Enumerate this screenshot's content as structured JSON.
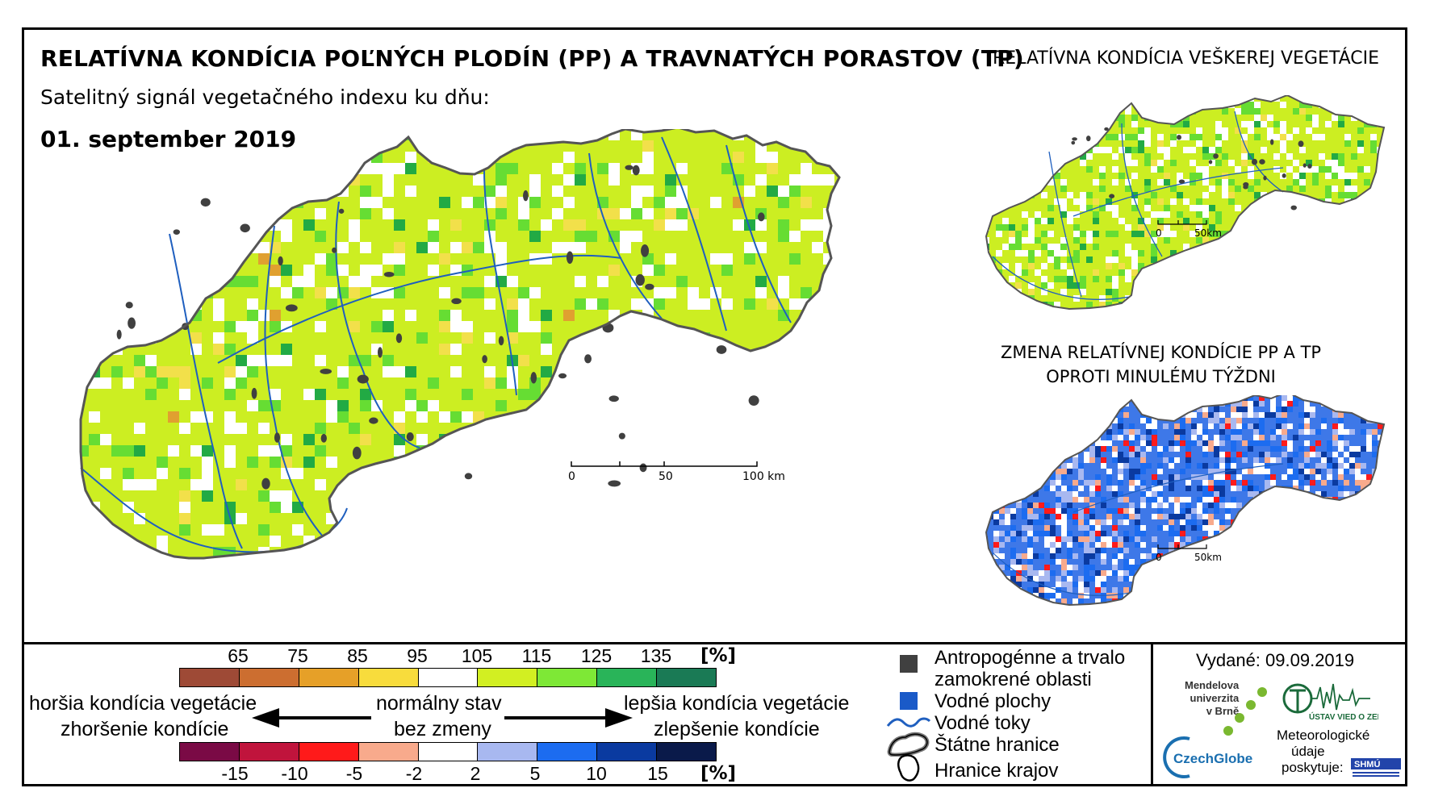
{
  "header": {
    "title": "RELATÍVNA KONDÍCIA POĽNÝCH PLODÍN (PP) A TRAVNATÝCH PORASTOV (TP)",
    "subtitle": "Satelitný signál vegetačného indexu ku dňu:",
    "date": "01. september 2019",
    "title_all_vegetation": "RELATÍVNA KONDÍCIA VEŠKEREJ VEGETÁCIE",
    "title_change_line1": "ZMENA RELATÍVNEJ KONDÍCIE PP A TP",
    "title_change_line2": "OPROTI MINULÉMU TÝŽDNI"
  },
  "main_map": {
    "scale": {
      "l0": "0",
      "l50": "50",
      "l100": "100 km"
    },
    "colors": {
      "outline": "#555555",
      "river": "#1f5fbf",
      "urban": "#404040",
      "base": "#ccee22",
      "green": "#66dd33",
      "dgreen": "#22aa44",
      "yellow": "#f2e04a",
      "orange": "#e0a030"
    }
  },
  "small_maps": {
    "scale1": {
      "l0": "0",
      "l50": "50km"
    },
    "scale2": {
      "l0": "0",
      "l50": "50km"
    }
  },
  "legend": {
    "top_ticks": [
      "65",
      "75",
      "85",
      "95",
      "105",
      "115",
      "125",
      "135"
    ],
    "top_unit": "[%]",
    "top_colors": [
      "#9e4a36",
      "#cc6e30",
      "#e6a028",
      "#f8dc3c",
      "#ffffff",
      "#d2ef22",
      "#7ee836",
      "#29b459",
      "#1a7a55"
    ],
    "bottom_ticks": [
      "-15",
      "-10",
      "-5",
      "-2",
      "2",
      "5",
      "10",
      "15"
    ],
    "bottom_unit": "[%]",
    "bottom_colors": [
      "#7a0a45",
      "#c0143c",
      "#ff1a1a",
      "#f8aa8c",
      "#ffffff",
      "#a8b8f0",
      "#1c6cf0",
      "#0a3aa0",
      "#0a1a4a"
    ],
    "worse_line1": "horšia kondícia vegetácie",
    "worse_line2": "zhoršenie kondície",
    "normal_line1": "normálny stav",
    "normal_line2": "bez zmeny",
    "better_line1": "lepšia kondícia vegetácie",
    "better_line2": "zlepšenie kondície"
  },
  "symbols": {
    "anthropogenic_line1": "Antropogénne a trvalo",
    "anthropogenic_line2": "zamokrené oblasti",
    "water_bodies": "Vodné plochy",
    "water_streams": "Vodné toky",
    "state_border": "Štátne hranice",
    "region_border": "Hranice krajov"
  },
  "issue": {
    "issued": "Vydané: 09.09.2019",
    "mendel_line1": "Mendelova",
    "mendel_line2": "univerzita",
    "mendel_line3": "v Brně",
    "czechglobe": "CzechGlobe",
    "uvoz": "ÚSTAV VIED O ZEMI",
    "meteo_line1": "Meteorologické",
    "meteo_line2": "údaje",
    "meteo_line3": "poskytuje:",
    "shmu": "SHMÚ"
  }
}
